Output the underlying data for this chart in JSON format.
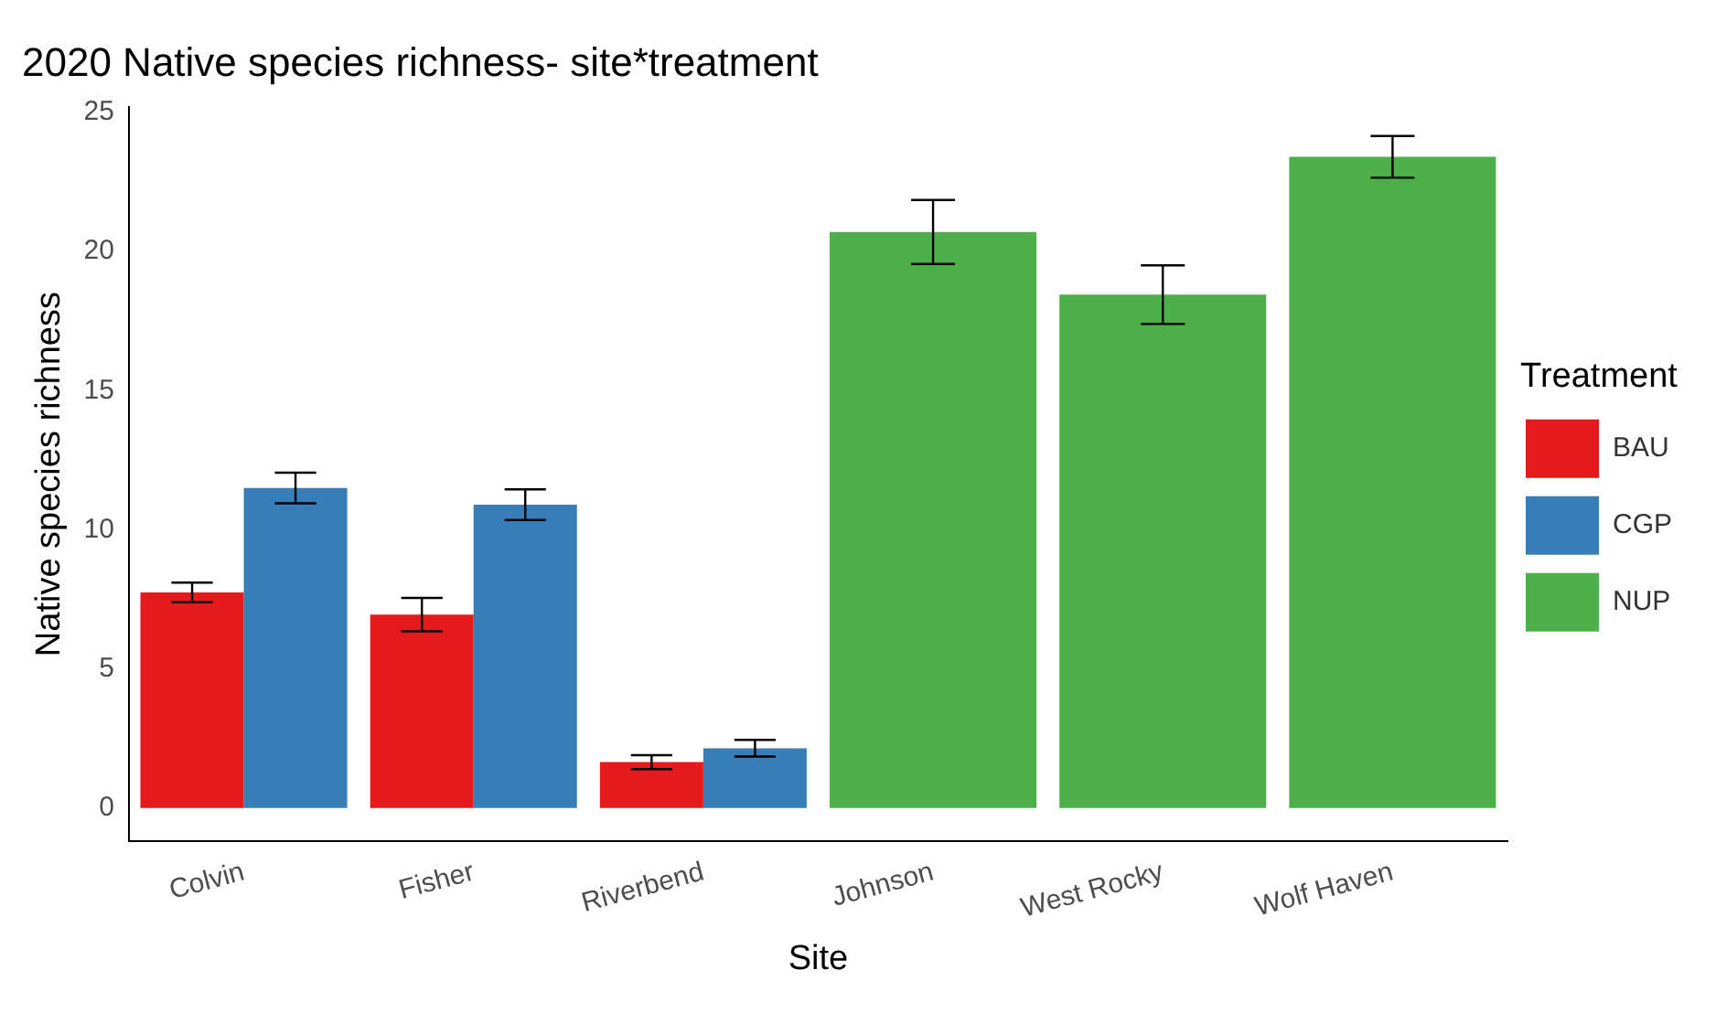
{
  "chart_data": {
    "type": "bar",
    "title": "2020 Native species richness- site*treatment",
    "xlabel": "Site",
    "ylabel": "Native species richness",
    "legend_title": "Treatment",
    "legend": "right",
    "grid": false,
    "categories": [
      "Colvin",
      "Fisher",
      "Riverbend",
      "Johnson",
      "West Rocky",
      "Wolf Haven"
    ],
    "ylim": [
      -1.2,
      25.2
    ],
    "yticks": [
      0,
      5,
      10,
      15,
      20,
      25
    ],
    "series": [
      {
        "name": "BAU",
        "color": "#e41a1c",
        "values": [
          7.75,
          6.95,
          1.65,
          null,
          null,
          null
        ],
        "errors": [
          0.35,
          0.6,
          0.25,
          null,
          null,
          null
        ]
      },
      {
        "name": "CGP",
        "color": "#377eb8",
        "values": [
          11.5,
          10.9,
          2.15,
          null,
          null,
          null
        ],
        "errors": [
          0.55,
          0.55,
          0.3,
          null,
          null,
          null
        ]
      },
      {
        "name": "NUP",
        "color": "#4daf4a",
        "values": [
          null,
          null,
          null,
          20.7,
          18.45,
          23.4
        ],
        "errors": [
          null,
          null,
          null,
          1.15,
          1.05,
          0.75
        ]
      }
    ]
  }
}
